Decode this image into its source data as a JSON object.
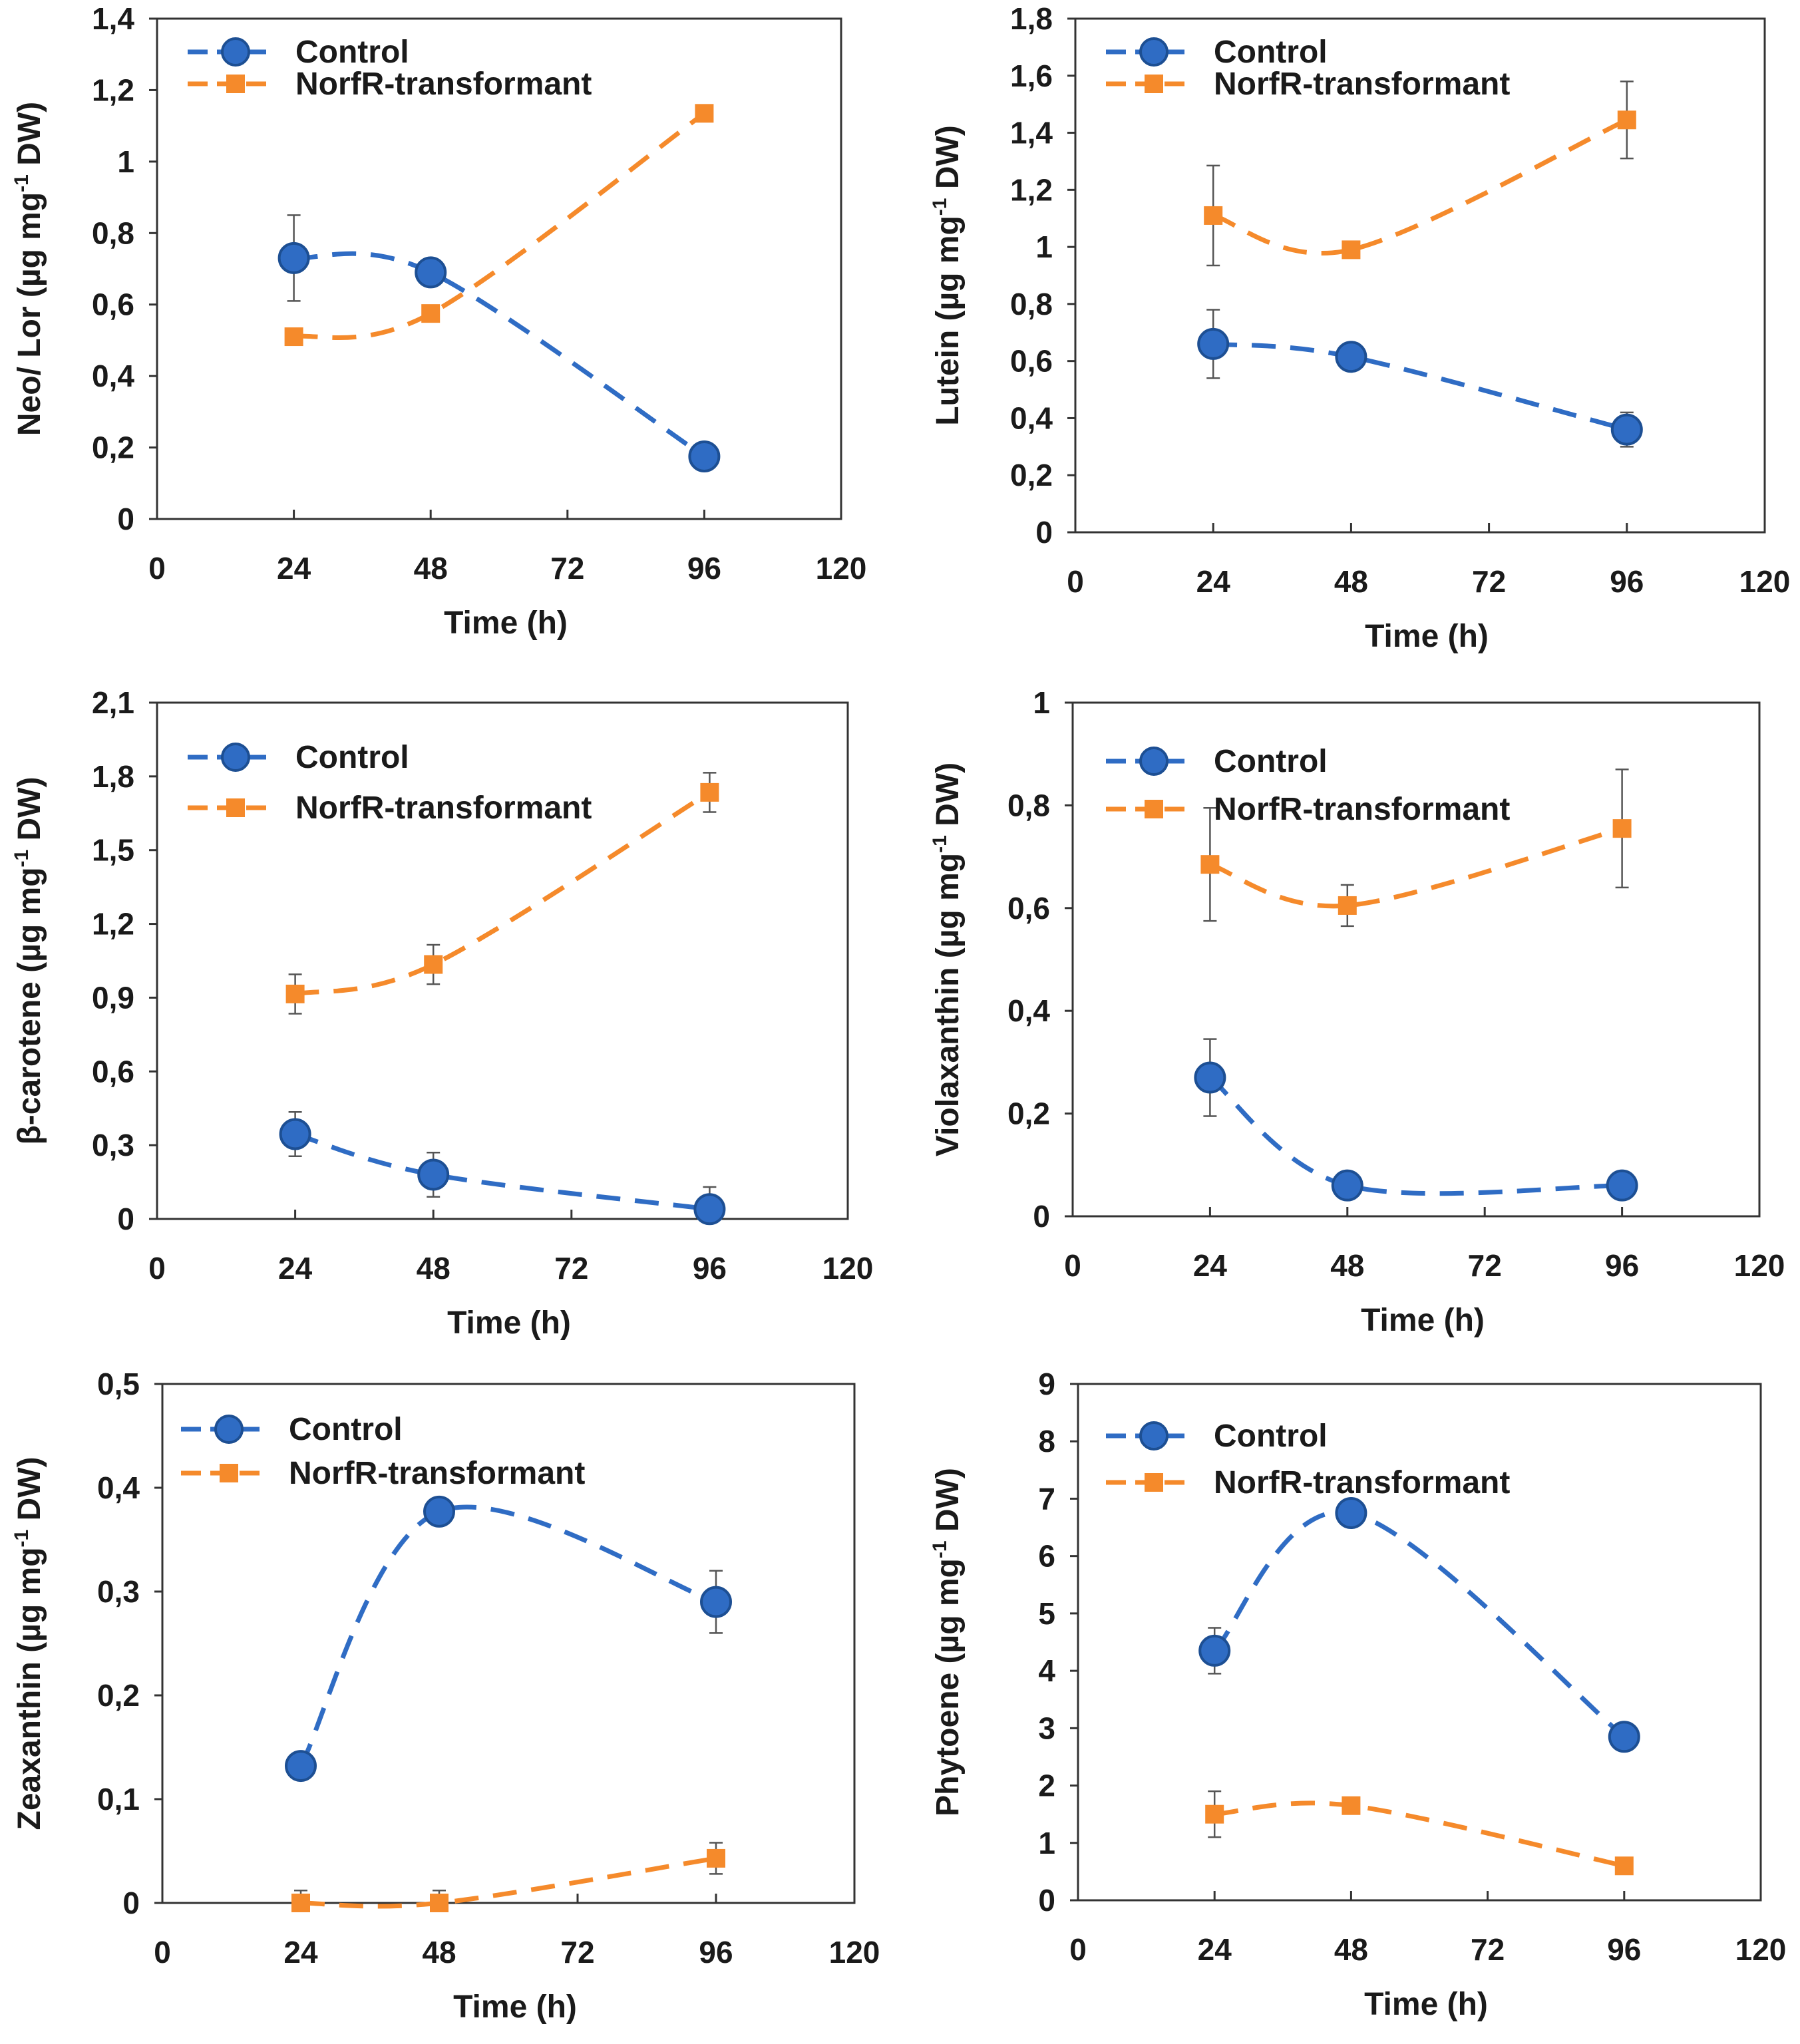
{
  "colors": {
    "control": "#2f6cc4",
    "control_stroke": "#1d4f93",
    "transformant": "#f58a2b",
    "axis": "#333333",
    "error": "#555555"
  },
  "chart_data": [
    {
      "type": "line",
      "xlabel": "Time (h)",
      "ylabel_parts": [
        "Neo/ Lor  (µg mg",
        "-1",
        " DW)"
      ],
      "x_ticks": [
        "0",
        "24",
        "48",
        "72",
        "96",
        "120"
      ],
      "xlim": [
        0,
        120
      ],
      "y_ticks": [
        "0",
        "0,2",
        "0,4",
        "0,6",
        "0,8",
        "1",
        "1,2",
        "1,4"
      ],
      "ylim": [
        0,
        1.4
      ],
      "legend": [
        "Control",
        "NorfR-transformant"
      ],
      "series": [
        {
          "name": "Control",
          "x": [
            24,
            48,
            96
          ],
          "values": [
            0.73,
            0.69,
            0.175
          ],
          "errors": [
            0.12,
            0.02,
            0.02
          ]
        },
        {
          "name": "NorfR-transformant",
          "x": [
            24,
            48,
            96
          ],
          "values": [
            0.51,
            0.575,
            1.135
          ],
          "errors": [
            0.02,
            0.02,
            0.02
          ]
        }
      ]
    },
    {
      "type": "line",
      "xlabel": "Time (h)",
      "ylabel_parts": [
        "Lutein  (µg mg",
        "-1",
        " DW)"
      ],
      "x_ticks": [
        "0",
        "24",
        "48",
        "72",
        "96",
        "120"
      ],
      "xlim": [
        0,
        120
      ],
      "y_ticks": [
        "0",
        "0,2",
        "0,4",
        "0,6",
        "0,8",
        "1",
        "1,2",
        "1,4",
        "1,6",
        "1,8"
      ],
      "ylim": [
        0,
        1.8
      ],
      "legend": [
        "Control",
        "NorfR-transformant"
      ],
      "series": [
        {
          "name": "Control",
          "x": [
            24,
            48,
            96
          ],
          "values": [
            0.66,
            0.615,
            0.36
          ],
          "errors": [
            0.12,
            0.02,
            0.06
          ]
        },
        {
          "name": "NorfR-transformant",
          "x": [
            24,
            48,
            96
          ],
          "values": [
            1.11,
            0.99,
            1.445
          ],
          "errors": [
            0.175,
            0.02,
            0.135
          ]
        }
      ]
    },
    {
      "type": "line",
      "xlabel": "Time (h)",
      "ylabel_parts": [
        "β-carotene  (µg mg",
        "-1",
        " DW)"
      ],
      "x_ticks": [
        "0",
        "24",
        "48",
        "72",
        "96",
        "120"
      ],
      "xlim": [
        0,
        120
      ],
      "y_ticks": [
        "0",
        "0,3",
        "0,6",
        "0,9",
        "1,2",
        "1,5",
        "1,8",
        "2,1"
      ],
      "ylim": [
        0,
        2.1
      ],
      "legend": [
        "Control",
        "NorfR-transformant"
      ],
      "series": [
        {
          "name": "Control",
          "x": [
            24,
            48,
            96
          ],
          "values": [
            0.345,
            0.18,
            0.04
          ],
          "errors": [
            0.09,
            0.09,
            0.09
          ]
        },
        {
          "name": "NorfR-transformant",
          "x": [
            24,
            48,
            96
          ],
          "values": [
            0.915,
            1.035,
            1.735
          ],
          "errors": [
            0.08,
            0.08,
            0.08
          ]
        }
      ]
    },
    {
      "type": "line",
      "xlabel": "Time (h)",
      "ylabel_parts": [
        "Violaxanthin    (µg mg",
        "-1",
        " DW)"
      ],
      "x_ticks": [
        "0",
        "24",
        "48",
        "72",
        "96",
        "120"
      ],
      "xlim": [
        0,
        120
      ],
      "y_ticks": [
        "0",
        "0,2",
        "0,4",
        "0,6",
        "0,8",
        "1"
      ],
      "ylim": [
        0,
        1
      ],
      "legend": [
        "Control",
        "NorfR-transformant"
      ],
      "series": [
        {
          "name": "Control",
          "x": [
            24,
            48,
            96
          ],
          "values": [
            0.27,
            0.06,
            0.06
          ],
          "errors": [
            0.075,
            0.015,
            0.025
          ]
        },
        {
          "name": "NorfR-transformant",
          "x": [
            24,
            48,
            96
          ],
          "values": [
            0.685,
            0.605,
            0.755
          ],
          "errors": [
            0.11,
            0.04,
            0.115
          ]
        }
      ]
    },
    {
      "type": "line",
      "xlabel": "Time (h)",
      "ylabel_parts": [
        "Zeaxanthin   (µg mg",
        "-1",
        " DW)"
      ],
      "x_ticks": [
        "0",
        "24",
        "48",
        "72",
        "96",
        "120"
      ],
      "xlim": [
        0,
        120
      ],
      "y_ticks": [
        "0",
        "0,1",
        "0,2",
        "0,3",
        "0,4",
        "0,5"
      ],
      "ylim": [
        0,
        0.5
      ],
      "legend": [
        "Control",
        "NorfR-transformant"
      ],
      "series": [
        {
          "name": "Control",
          "x": [
            24,
            48,
            96
          ],
          "values": [
            0.132,
            0.377,
            0.29
          ],
          "errors": [
            0.005,
            0.005,
            0.03
          ]
        },
        {
          "name": "NorfR-transformant",
          "x": [
            24,
            48,
            96
          ],
          "values": [
            0.0,
            0.0,
            0.043
          ],
          "errors": [
            0.012,
            0.012,
            0.015
          ]
        }
      ]
    },
    {
      "type": "line",
      "xlabel": "Time (h)",
      "ylabel_parts": [
        "Phytoene  (µg mg",
        "-1",
        " DW)"
      ],
      "x_ticks": [
        "0",
        "24",
        "48",
        "72",
        "96",
        "120"
      ],
      "xlim": [
        0,
        120
      ],
      "y_ticks": [
        "0",
        "1",
        "2",
        "3",
        "4",
        "5",
        "6",
        "7",
        "8",
        "9"
      ],
      "ylim": [
        0,
        9
      ],
      "legend": [
        "Control",
        "NorfR-transformant"
      ],
      "series": [
        {
          "name": "Control",
          "x": [
            24,
            48,
            96
          ],
          "values": [
            4.35,
            6.75,
            2.85
          ],
          "errors": [
            0.4,
            0.1,
            0.1
          ]
        },
        {
          "name": "NorfR-transformant",
          "x": [
            24,
            48,
            96
          ],
          "values": [
            1.5,
            1.65,
            0.6
          ],
          "errors": [
            0.4,
            0.1,
            0.1
          ]
        }
      ]
    }
  ]
}
